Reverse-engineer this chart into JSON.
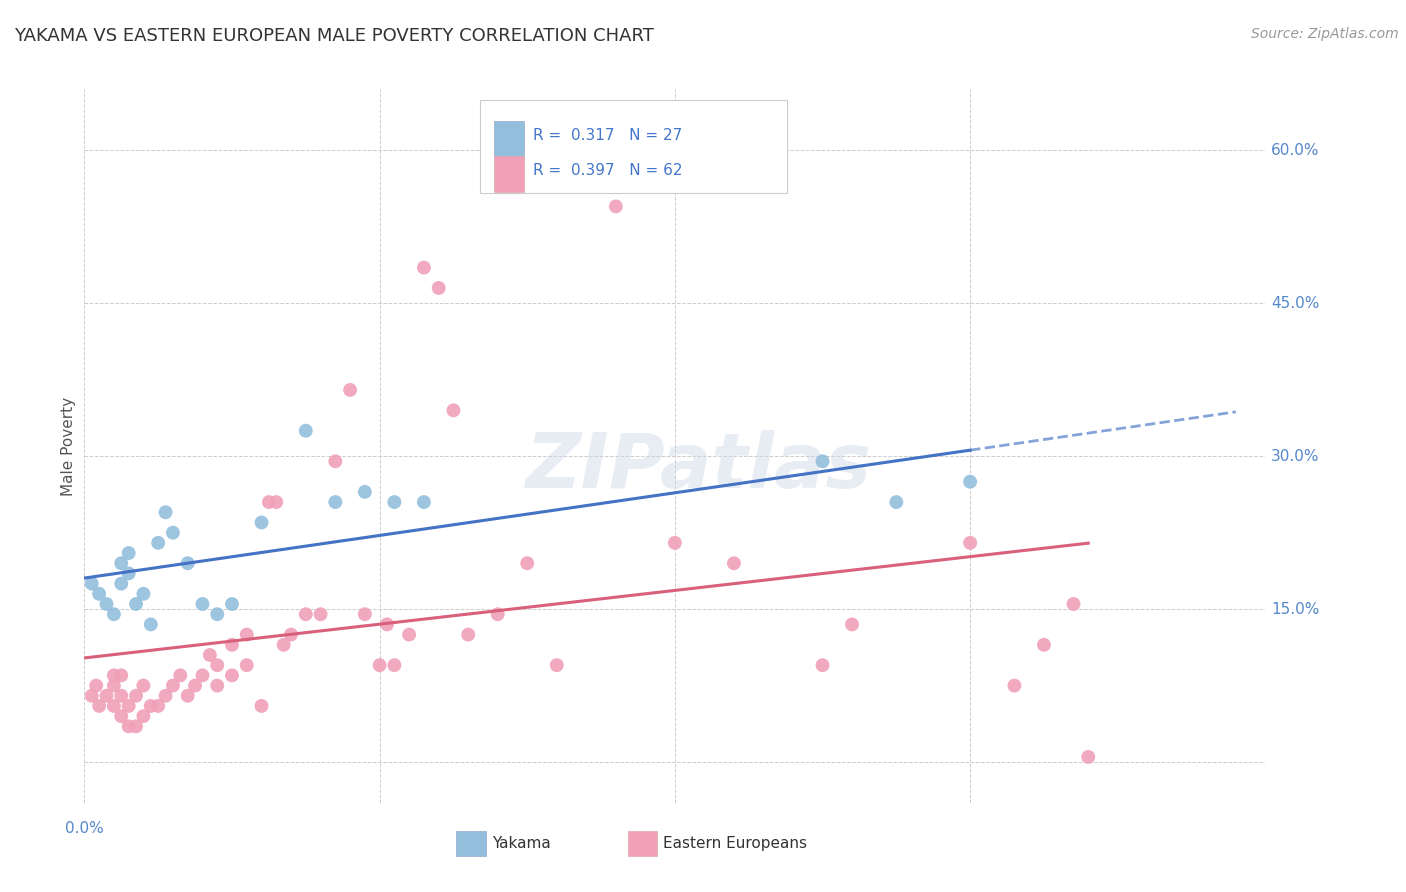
{
  "title": "YAKAMA VS EASTERN EUROPEAN MALE POVERTY CORRELATION CHART",
  "source": "Source: ZipAtlas.com",
  "ylabel": "Male Poverty",
  "ytick_values": [
    0.0,
    0.15,
    0.3,
    0.45,
    0.6
  ],
  "xlim": [
    0.0,
    0.8
  ],
  "ylim": [
    -0.04,
    0.66
  ],
  "plot_ylim": [
    0.0,
    0.65
  ],
  "background_color": "#ffffff",
  "grid_color": "#cccccc",
  "watermark_text": "ZIPatlas",
  "yakama_color": "#93bfdd",
  "eastern_color": "#f0a0b8",
  "yakama_R": 0.317,
  "yakama_N": 27,
  "eastern_R": 0.397,
  "eastern_N": 62,
  "yakama_line_color": "#4472c4",
  "eastern_line_color": "#d9607a",
  "yakama_x": [
    0.005,
    0.01,
    0.015,
    0.02,
    0.025,
    0.025,
    0.03,
    0.03,
    0.035,
    0.04,
    0.045,
    0.05,
    0.055,
    0.06,
    0.07,
    0.08,
    0.09,
    0.1,
    0.12,
    0.15,
    0.17,
    0.19,
    0.21,
    0.23,
    0.5,
    0.55,
    0.6
  ],
  "yakama_y": [
    0.175,
    0.165,
    0.155,
    0.145,
    0.175,
    0.195,
    0.185,
    0.205,
    0.155,
    0.165,
    0.135,
    0.215,
    0.245,
    0.225,
    0.195,
    0.155,
    0.145,
    0.155,
    0.235,
    0.325,
    0.255,
    0.265,
    0.255,
    0.255,
    0.295,
    0.255,
    0.275
  ],
  "eastern_x": [
    0.005,
    0.008,
    0.01,
    0.015,
    0.02,
    0.02,
    0.02,
    0.025,
    0.025,
    0.025,
    0.03,
    0.03,
    0.035,
    0.035,
    0.04,
    0.04,
    0.045,
    0.05,
    0.055,
    0.06,
    0.065,
    0.07,
    0.075,
    0.08,
    0.085,
    0.09,
    0.09,
    0.1,
    0.1,
    0.11,
    0.11,
    0.12,
    0.125,
    0.13,
    0.135,
    0.14,
    0.15,
    0.16,
    0.17,
    0.18,
    0.19,
    0.2,
    0.205,
    0.21,
    0.22,
    0.23,
    0.24,
    0.25,
    0.26,
    0.28,
    0.3,
    0.32,
    0.36,
    0.4,
    0.44,
    0.5,
    0.52,
    0.6,
    0.63,
    0.65,
    0.67,
    0.68
  ],
  "eastern_y": [
    0.065,
    0.075,
    0.055,
    0.065,
    0.055,
    0.075,
    0.085,
    0.045,
    0.065,
    0.085,
    0.035,
    0.055,
    0.035,
    0.065,
    0.045,
    0.075,
    0.055,
    0.055,
    0.065,
    0.075,
    0.085,
    0.065,
    0.075,
    0.085,
    0.105,
    0.075,
    0.095,
    0.085,
    0.115,
    0.095,
    0.125,
    0.055,
    0.255,
    0.255,
    0.115,
    0.125,
    0.145,
    0.145,
    0.295,
    0.365,
    0.145,
    0.095,
    0.135,
    0.095,
    0.125,
    0.485,
    0.465,
    0.345,
    0.125,
    0.145,
    0.195,
    0.095,
    0.545,
    0.215,
    0.195,
    0.095,
    0.135,
    0.215,
    0.075,
    0.115,
    0.155,
    0.005
  ]
}
